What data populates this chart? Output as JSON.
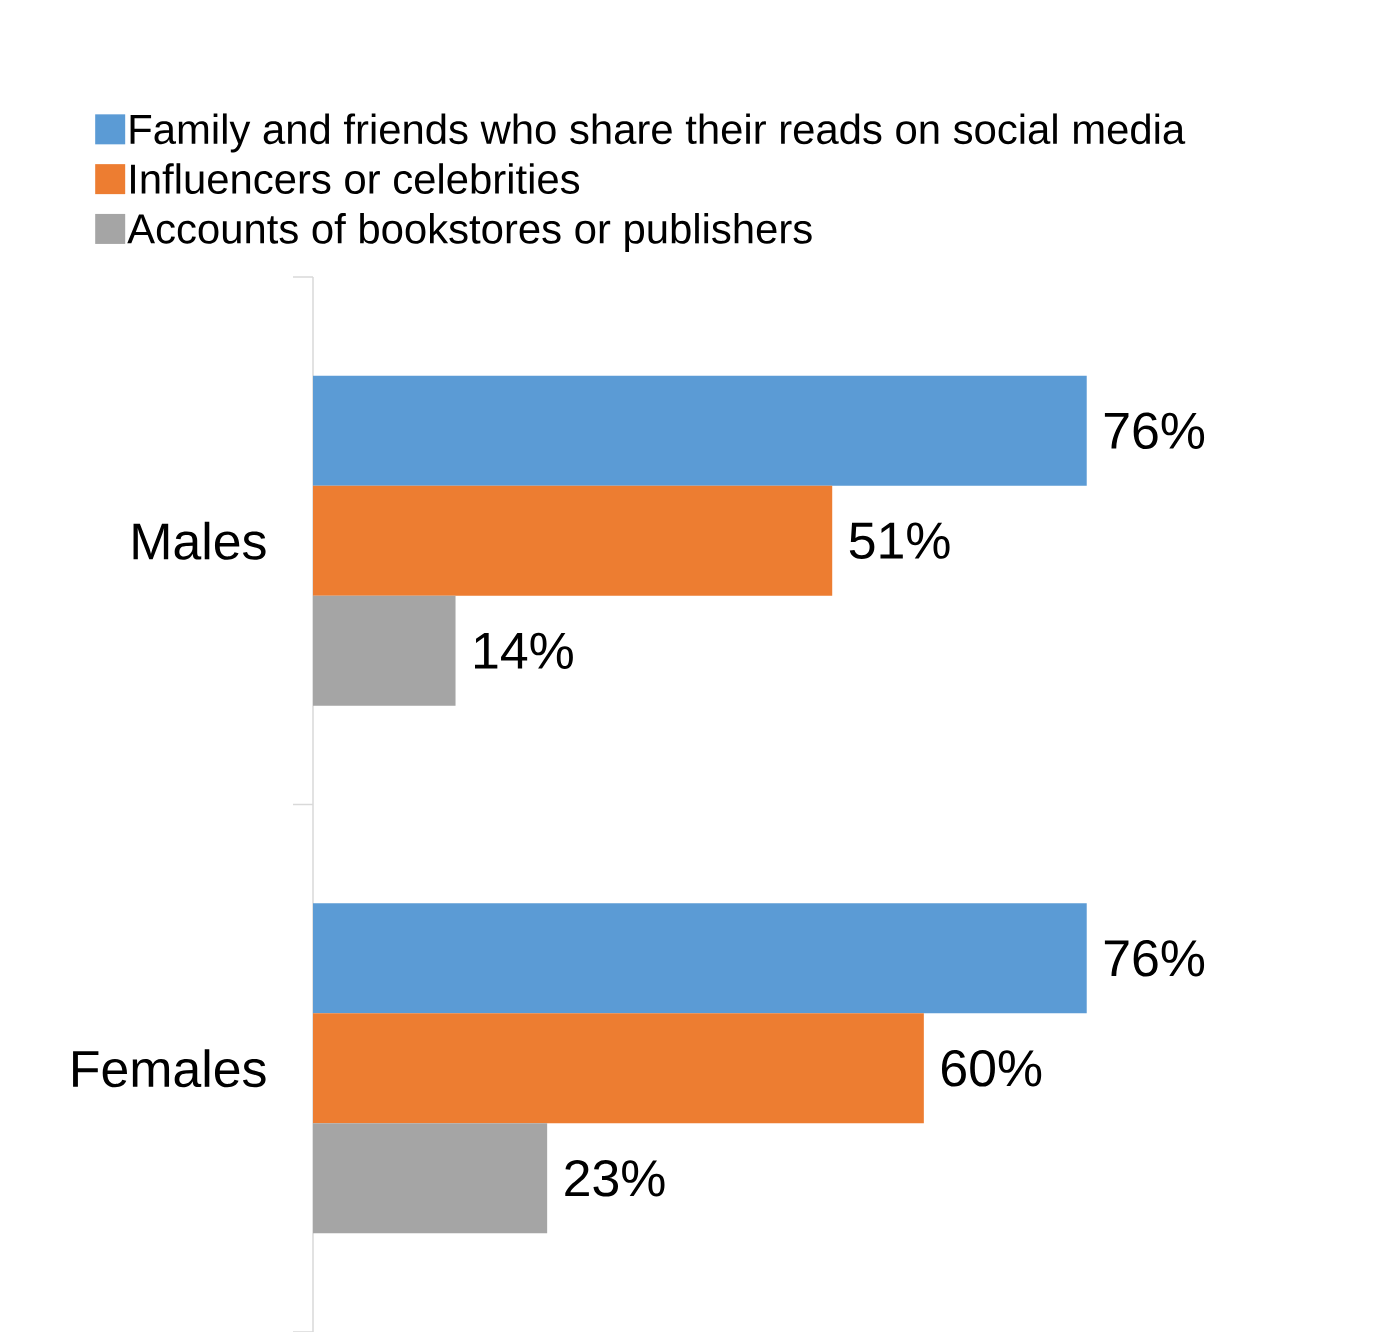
{
  "chart_data": {
    "type": "bar",
    "orientation": "horizontal",
    "categories": [
      "Males",
      "Females"
    ],
    "series": [
      {
        "name": "Family and friends who share their reads on social media",
        "color": "#5b9bd5",
        "values": [
          76,
          76
        ],
        "value_labels": [
          "76%",
          "76%"
        ]
      },
      {
        "name": "Influencers or celebrities",
        "color": "#ed7d31",
        "values": [
          51,
          60
        ],
        "value_labels": [
          "51%",
          "60%"
        ]
      },
      {
        "name": "Accounts of bookstores or publishers",
        "color": "#a5a5a5",
        "values": [
          14,
          23
        ],
        "value_labels": [
          "14%",
          "23%"
        ]
      }
    ],
    "legend": "top"
  }
}
